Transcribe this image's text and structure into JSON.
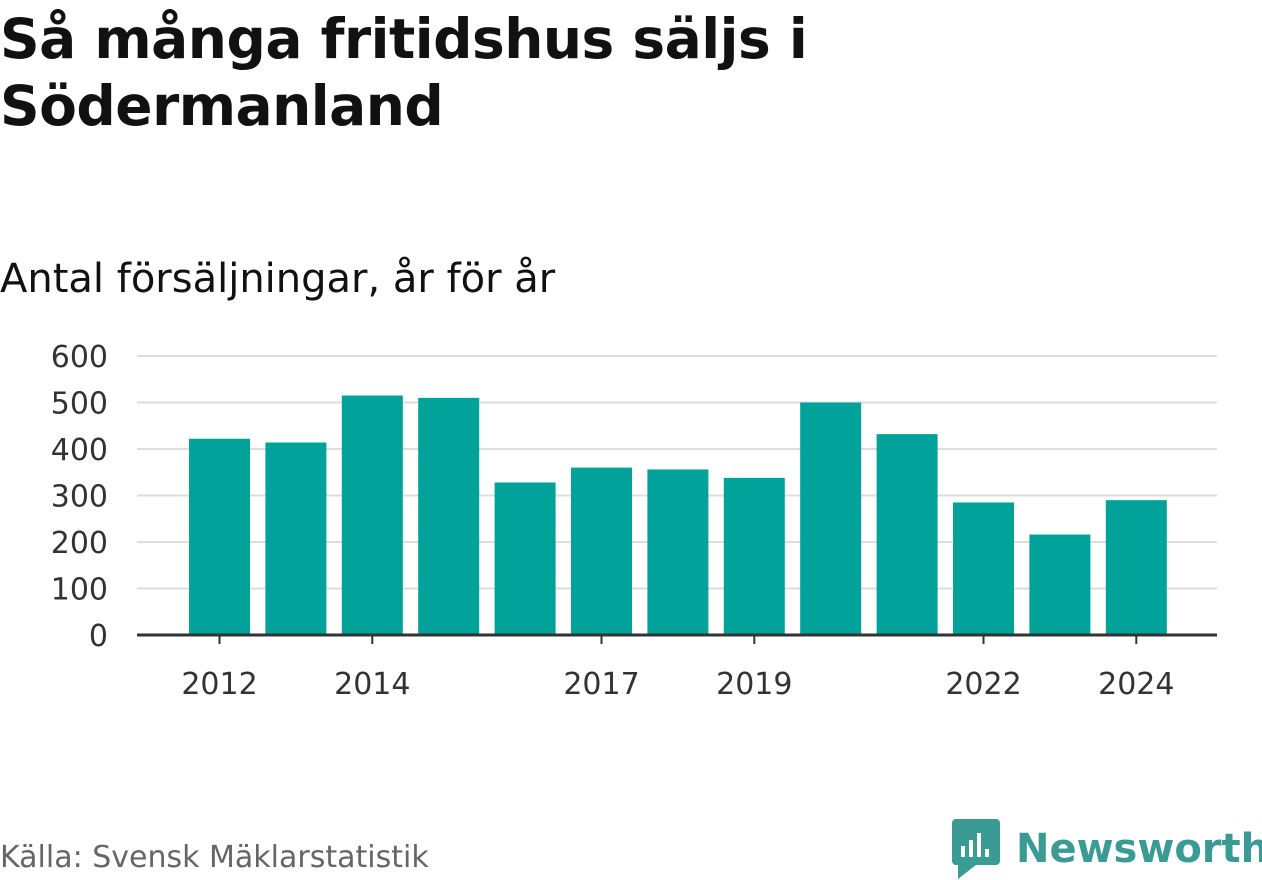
{
  "title": "Så många fritidshus säljs i Södermanland",
  "subtitle": "Antal försäljningar, år för år",
  "source": "Källa: Svensk Mäklarstatistik",
  "brand": {
    "name": "Newsworthy",
    "icon": "newsworthy-logo-icon",
    "color": "#3a9b95"
  },
  "colors": {
    "bar": "#00a29a",
    "grid": "#dddddd",
    "axis": "#333333"
  },
  "chart_data": {
    "type": "bar",
    "categories": [
      "2012",
      "2013",
      "2014",
      "2015",
      "2016",
      "2017",
      "2018",
      "2019",
      "2020",
      "2021",
      "2022",
      "2023",
      "2024"
    ],
    "values": [
      422,
      414,
      515,
      510,
      328,
      360,
      356,
      338,
      500,
      432,
      285,
      216,
      290
    ],
    "x_tick_labels": [
      "2012",
      "2014",
      "2017",
      "2019",
      "2022",
      "2024"
    ],
    "y_ticks": [
      0,
      100,
      200,
      300,
      400,
      500,
      600
    ],
    "ylim": [
      0,
      600
    ],
    "grid": true,
    "legend": "none"
  }
}
